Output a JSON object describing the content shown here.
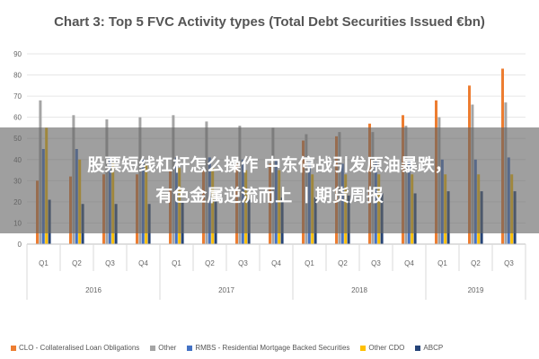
{
  "chart_data": {
    "type": "bar",
    "title": "Chart 3: Top 5 FVC Activity types (Total Debt Securities Issued €bn)",
    "xlabel": "",
    "ylabel": "",
    "ylim": [
      0,
      90
    ],
    "yticks": [
      0,
      10,
      20,
      30,
      40,
      50,
      60,
      70,
      80,
      90
    ],
    "grid": true,
    "legend_position": "bottom",
    "categories": [
      "Q1",
      "Q2",
      "Q3",
      "Q4",
      "Q1",
      "Q2",
      "Q3",
      "Q4",
      "Q1",
      "Q2",
      "Q3",
      "Q4",
      "Q1",
      "Q2",
      "Q3"
    ],
    "year_groups": [
      {
        "label": "2016",
        "start": 0,
        "count": 4
      },
      {
        "label": "2017",
        "start": 4,
        "count": 4
      },
      {
        "label": "2018",
        "start": 8,
        "count": 4
      },
      {
        "label": "2019",
        "start": 12,
        "count": 3
      }
    ],
    "series": [
      {
        "name": "CLO - Collateralised Loan Obligations",
        "color": "#ED7D31",
        "values": [
          30,
          32,
          33,
          33,
          35,
          35,
          38,
          38,
          49,
          51,
          57,
          61,
          68,
          75,
          83
        ]
      },
      {
        "name": "Other",
        "color": "#A5A5A5",
        "values": [
          68,
          61,
          59,
          60,
          61,
          58,
          56,
          55,
          52,
          53,
          53,
          56,
          60,
          66,
          67
        ]
      },
      {
        "name": "RMBS - Residential Mortgage Backed Securities",
        "color": "#4472C4",
        "values": [
          45,
          45,
          41,
          40,
          41,
          41,
          40,
          40,
          39,
          38,
          39,
          40,
          40,
          40,
          41
        ]
      },
      {
        "name": "Other CDO",
        "color": "#FFC000",
        "values": [
          55,
          40,
          38,
          38,
          36,
          36,
          35,
          35,
          33,
          33,
          33,
          33,
          33,
          33,
          33
        ]
      },
      {
        "name": "ABCP",
        "color": "#264478",
        "values": [
          21,
          19,
          19,
          19,
          20,
          21,
          21,
          22,
          22,
          23,
          24,
          24,
          25,
          25,
          25
        ]
      }
    ]
  },
  "overlay": {
    "line1": "股票短线杠杆怎么操作 中东停战引发原油暴跌，",
    "line2": "有色金属逆流而上 丨期货周报"
  }
}
